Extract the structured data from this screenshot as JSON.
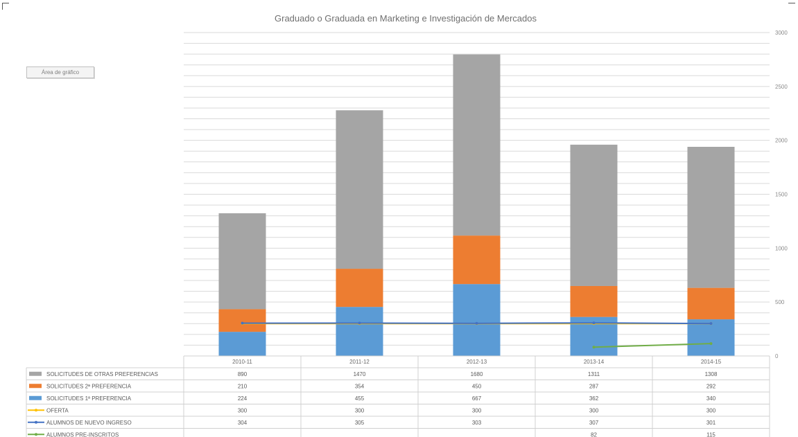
{
  "chart_button": {
    "label": "Área de gráfico"
  },
  "chart_data": {
    "type": "bar",
    "stacked": true,
    "title": "Graduado o Graduada en Marketing e Investigación de Mercados",
    "categories": [
      "2010-11",
      "2011-12",
      "2012-13",
      "2013-14",
      "2014-15"
    ],
    "y_axis": {
      "side": "right",
      "ylim": [
        0,
        3000
      ],
      "ticks": [
        0,
        500,
        1000,
        1500,
        2000,
        2500,
        3000
      ]
    },
    "grid": true,
    "legend": "bottom-table",
    "series": [
      {
        "name": "SOLICITUDES DE OTRAS PREFERENCIAS",
        "type": "bar",
        "color": "#a5a5a5",
        "values": [
          890,
          1470,
          1680,
          1311,
          1308
        ]
      },
      {
        "name": "SOLICITUDES 2ª PREFERENCIA",
        "type": "bar",
        "color": "#ed7d31",
        "values": [
          210,
          354,
          450,
          287,
          292
        ]
      },
      {
        "name": "SOLICITUDES 1ª PREFERENCIA",
        "type": "bar",
        "color": "#5b9bd5",
        "values": [
          224,
          455,
          667,
          362,
          340
        ]
      },
      {
        "name": "OFERTA",
        "type": "line",
        "color": "#ffc000",
        "values": [
          300,
          300,
          300,
          300,
          300
        ]
      },
      {
        "name": "ALUMNOS DE NUEVO INGRESO",
        "type": "line",
        "color": "#4472c4",
        "values": [
          304,
          305,
          303,
          307,
          301
        ]
      },
      {
        "name": "ALUMNOS PRE-INSCRITOS",
        "type": "line",
        "color": "#70ad47",
        "values": [
          null,
          null,
          null,
          82,
          115
        ]
      }
    ]
  }
}
